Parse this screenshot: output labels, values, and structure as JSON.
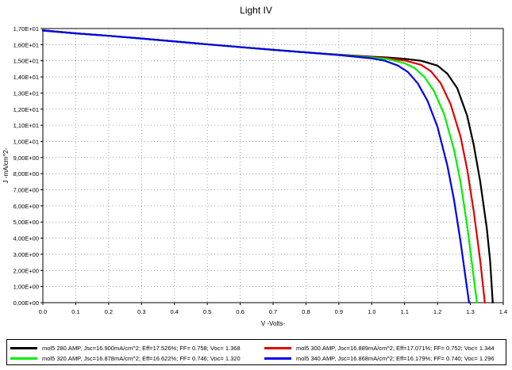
{
  "chart_data": {
    "type": "line",
    "title": "Light IV",
    "xlabel": "V -Volts-",
    "ylabel": "J -mA/cm^2-",
    "xlim": [
      0.0,
      1.4
    ],
    "ylim": [
      0.0,
      17.0
    ],
    "x_ticks": [
      "0.0",
      "0.1",
      "0.2",
      "0.3",
      "0.4",
      "0.5",
      "0.6",
      "0.7",
      "0.8",
      "0.9",
      "1.0",
      "1.1",
      "1.2",
      "1.3",
      "1.4"
    ],
    "y_ticks": [
      "0,00E+00",
      "1,00E+00",
      "2,00E+00",
      "3,00E+00",
      "4,00E+00",
      "5,00E+00",
      "6,00E+00",
      "7,00E+00",
      "8,00E+00",
      "9,00E+00",
      "1,00E+01",
      "1,10E+01",
      "1,20E+01",
      "1,30E+01",
      "1,40E+01",
      "1,50E+01",
      "1,60E+01",
      "1,70E+01"
    ],
    "grid": true,
    "legend_position": "bottom",
    "series": [
      {
        "name": "mol5 280.AMP, Jsc=16.900mA/cm^2; Eff=17.526%; FF=  0.758; Voc=  1.368",
        "color": "#000000",
        "x": [
          0,
          0.1,
          0.2,
          0.3,
          0.4,
          0.5,
          0.6,
          0.7,
          0.8,
          0.9,
          1.0,
          1.05,
          1.1,
          1.15,
          1.2,
          1.23,
          1.26,
          1.29,
          1.31,
          1.33,
          1.35,
          1.36,
          1.368
        ],
        "y": [
          16.9,
          16.7,
          16.55,
          16.38,
          16.2,
          16.02,
          15.85,
          15.68,
          15.52,
          15.38,
          15.25,
          15.2,
          15.12,
          15.0,
          14.7,
          14.2,
          13.3,
          11.6,
          9.8,
          7.5,
          4.6,
          2.6,
          0.0
        ]
      },
      {
        "name": "mol5 300.AMP, Jsc=16.889mA/cm^2; Eff=17.071%; FF=  0.752; Voc=  1.344",
        "color": "#e00000",
        "x": [
          0,
          0.1,
          0.2,
          0.3,
          0.4,
          0.5,
          0.6,
          0.7,
          0.8,
          0.9,
          1.0,
          1.05,
          1.1,
          1.15,
          1.18,
          1.21,
          1.24,
          1.27,
          1.29,
          1.31,
          1.33,
          1.344
        ],
        "y": [
          16.89,
          16.7,
          16.55,
          16.38,
          16.2,
          16.02,
          15.85,
          15.68,
          15.52,
          15.37,
          15.22,
          15.15,
          15.02,
          14.75,
          14.35,
          13.6,
          12.3,
          10.3,
          8.3,
          5.7,
          2.6,
          0.0
        ]
      },
      {
        "name": "mol5 320.AMP, Jsc=16.878mA/cm^2; Eff=16.622%; FF=  0.746; Voc=  1.320",
        "color": "#00ee00",
        "x": [
          0,
          0.1,
          0.2,
          0.3,
          0.4,
          0.5,
          0.6,
          0.7,
          0.8,
          0.9,
          1.0,
          1.05,
          1.1,
          1.13,
          1.16,
          1.19,
          1.22,
          1.25,
          1.27,
          1.29,
          1.31,
          1.32
        ],
        "y": [
          16.88,
          16.7,
          16.55,
          16.38,
          16.2,
          16.02,
          15.85,
          15.68,
          15.52,
          15.36,
          15.2,
          15.1,
          14.85,
          14.55,
          14.0,
          13.1,
          11.7,
          9.5,
          7.5,
          4.8,
          1.6,
          0.0
        ]
      },
      {
        "name": "mol5 340.AMP, Jsc=16.868mA/cm^2; Eff=16.179%; FF=  0.740; Voc=  1.296",
        "color": "#0000ee",
        "x": [
          0,
          0.1,
          0.2,
          0.3,
          0.4,
          0.5,
          0.6,
          0.7,
          0.8,
          0.9,
          1.0,
          1.04,
          1.08,
          1.11,
          1.14,
          1.17,
          1.2,
          1.23,
          1.25,
          1.27,
          1.285,
          1.296
        ],
        "y": [
          16.87,
          16.7,
          16.55,
          16.38,
          16.2,
          16.02,
          15.85,
          15.68,
          15.52,
          15.35,
          15.15,
          15.0,
          14.7,
          14.3,
          13.6,
          12.5,
          10.9,
          8.5,
          6.4,
          3.8,
          1.6,
          0.0
        ]
      }
    ]
  }
}
